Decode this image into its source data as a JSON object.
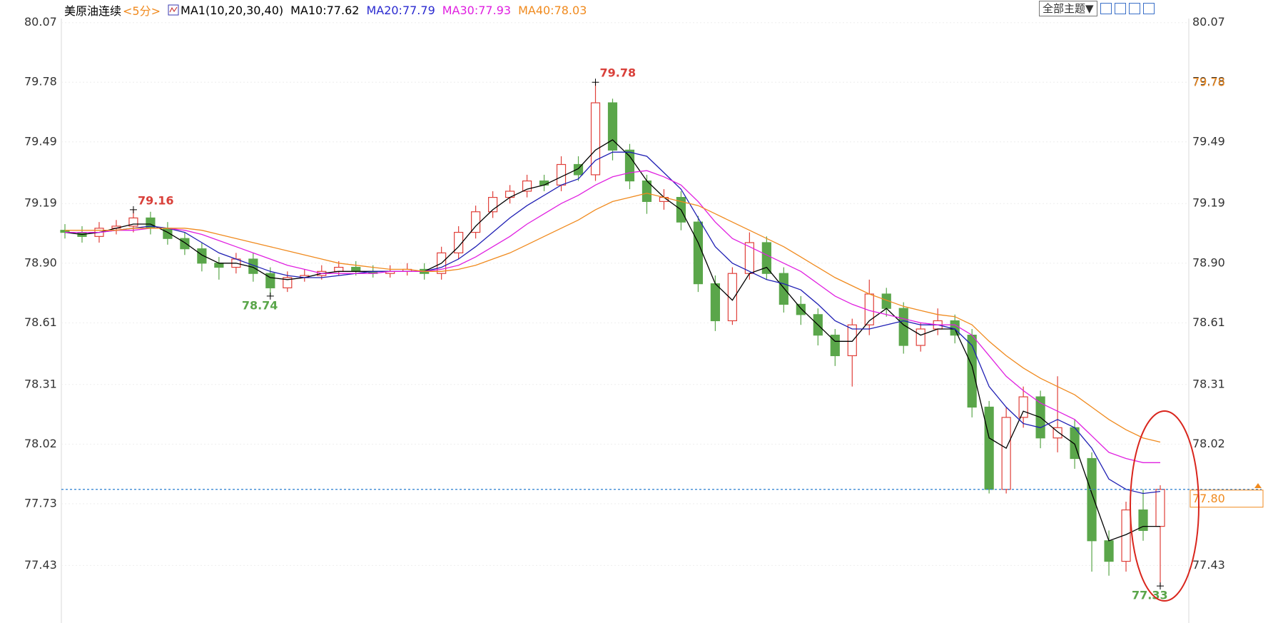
{
  "chart_data": {
    "type": "candlestick",
    "title": "美原油连续",
    "subtitle": "<5分>",
    "indicator": "MA1(10,20,30,40)",
    "toolbar_button": "全部主题▼",
    "up_color": "#e0403a",
    "down_color": "#5aa64a",
    "open": [
      79.06,
      79.05,
      79.03,
      79.07,
      79.08,
      79.12,
      79.07,
      79.02,
      78.97,
      78.9,
      78.88,
      78.92,
      78.85,
      78.78,
      78.83,
      78.84,
      78.86,
      78.88,
      78.86,
      78.85,
      78.86,
      78.87,
      78.85,
      78.95,
      79.05,
      79.15,
      79.22,
      79.25,
      79.3,
      79.28,
      79.38,
      79.33,
      79.68,
      79.45,
      79.3,
      79.2,
      79.22,
      79.1,
      78.8,
      78.62,
      78.85,
      79.0,
      78.85,
      78.7,
      78.65,
      78.55,
      78.45,
      78.6,
      78.75,
      78.68,
      78.5,
      78.58,
      78.62,
      78.55,
      78.2,
      77.8,
      78.15,
      78.25,
      78.05,
      78.1,
      77.95,
      77.55,
      77.45,
      77.7,
      77.62
    ],
    "high": [
      79.09,
      79.08,
      79.1,
      79.11,
      79.16,
      79.15,
      79.1,
      79.05,
      79.0,
      78.93,
      78.95,
      78.95,
      78.88,
      78.86,
      78.87,
      78.89,
      78.91,
      78.91,
      78.89,
      78.89,
      78.9,
      78.9,
      78.98,
      79.08,
      79.18,
      79.25,
      79.28,
      79.33,
      79.33,
      79.42,
      79.42,
      79.78,
      79.7,
      79.48,
      79.33,
      79.26,
      79.25,
      79.13,
      78.84,
      78.88,
      79.05,
      79.03,
      78.88,
      78.74,
      78.68,
      78.58,
      78.63,
      78.82,
      78.78,
      78.71,
      78.61,
      78.68,
      78.65,
      78.58,
      78.23,
      78.2,
      78.3,
      78.28,
      78.35,
      78.14,
      77.98,
      77.6,
      77.74,
      77.8,
      77.82
    ],
    "low": [
      79.02,
      79.0,
      79.0,
      79.04,
      79.05,
      79.04,
      78.99,
      78.94,
      78.86,
      78.82,
      78.85,
      78.81,
      78.74,
      78.76,
      78.81,
      78.82,
      78.84,
      78.84,
      78.83,
      78.83,
      78.84,
      78.82,
      78.82,
      78.92,
      79.02,
      79.12,
      79.19,
      79.22,
      79.25,
      79.25,
      79.3,
      79.3,
      79.4,
      79.26,
      79.14,
      79.16,
      79.06,
      78.76,
      78.57,
      78.6,
      78.82,
      78.82,
      78.66,
      78.6,
      78.5,
      78.4,
      78.3,
      78.55,
      78.64,
      78.46,
      78.47,
      78.55,
      78.51,
      78.15,
      77.78,
      77.78,
      78.1,
      78.0,
      77.98,
      77.9,
      77.4,
      77.38,
      77.4,
      77.55,
      77.33
    ],
    "close": [
      79.05,
      79.03,
      79.07,
      79.08,
      79.12,
      79.07,
      79.02,
      78.97,
      78.9,
      78.88,
      78.92,
      78.85,
      78.78,
      78.83,
      78.84,
      78.86,
      78.88,
      78.86,
      78.85,
      78.86,
      78.87,
      78.85,
      78.95,
      79.05,
      79.15,
      79.22,
      79.25,
      79.3,
      79.28,
      79.38,
      79.33,
      79.68,
      79.45,
      79.3,
      79.2,
      79.22,
      79.1,
      78.8,
      78.62,
      78.85,
      79.0,
      78.85,
      78.7,
      78.65,
      78.55,
      78.45,
      78.6,
      78.75,
      78.68,
      78.5,
      78.58,
      78.62,
      78.55,
      78.2,
      77.8,
      78.15,
      78.25,
      78.05,
      78.1,
      77.95,
      77.55,
      77.45,
      77.7,
      77.6,
      77.8
    ],
    "series": [
      {
        "name": "MA10:77.62",
        "color": "#000000",
        "values": [
          79.05,
          79.04,
          79.05,
          79.07,
          79.09,
          79.09,
          79.05,
          79.0,
          78.94,
          78.9,
          78.9,
          78.88,
          78.83,
          78.82,
          78.83,
          78.85,
          78.86,
          78.86,
          78.86,
          78.86,
          78.86,
          78.86,
          78.9,
          78.98,
          79.08,
          79.16,
          79.22,
          79.26,
          79.28,
          79.32,
          79.36,
          79.45,
          79.5,
          79.42,
          79.3,
          79.22,
          79.16,
          79.0,
          78.8,
          78.72,
          78.85,
          78.88,
          78.78,
          78.68,
          78.6,
          78.52,
          78.52,
          78.62,
          78.68,
          78.6,
          78.55,
          78.58,
          78.58,
          78.4,
          78.05,
          78.0,
          78.18,
          78.15,
          78.08,
          78.02,
          77.78,
          77.55,
          77.58,
          77.62,
          77.62
        ]
      },
      {
        "name": "MA20:77.79",
        "color": "#1f1fb4",
        "values": [
          79.05,
          79.05,
          79.05,
          79.06,
          79.07,
          79.08,
          79.07,
          79.05,
          79.0,
          78.95,
          78.92,
          78.89,
          78.86,
          78.84,
          78.83,
          78.83,
          78.84,
          78.85,
          78.86,
          78.86,
          78.86,
          78.86,
          78.88,
          78.92,
          78.98,
          79.05,
          79.12,
          79.18,
          79.23,
          79.28,
          79.31,
          79.4,
          79.44,
          79.44,
          79.42,
          79.34,
          79.26,
          79.12,
          78.98,
          78.9,
          78.86,
          78.82,
          78.8,
          78.77,
          78.7,
          78.62,
          78.58,
          78.58,
          78.6,
          78.62,
          78.6,
          78.6,
          78.58,
          78.5,
          78.3,
          78.2,
          78.12,
          78.1,
          78.14,
          78.1,
          78.0,
          77.85,
          77.8,
          77.78,
          77.79
        ]
      },
      {
        "name": "MA30:77.93",
        "color": "#e020e0",
        "values": [
          79.05,
          79.05,
          79.05,
          79.06,
          79.06,
          79.07,
          79.07,
          79.06,
          79.04,
          79.01,
          78.98,
          78.95,
          78.92,
          78.89,
          78.87,
          78.85,
          78.85,
          78.85,
          78.85,
          78.86,
          78.86,
          78.86,
          78.87,
          78.89,
          78.93,
          78.98,
          79.03,
          79.09,
          79.14,
          79.19,
          79.23,
          79.28,
          79.32,
          79.34,
          79.35,
          79.32,
          79.28,
          79.2,
          79.1,
          79.02,
          78.98,
          78.94,
          78.9,
          78.86,
          78.8,
          78.74,
          78.7,
          78.67,
          78.65,
          78.63,
          78.61,
          78.6,
          78.6,
          78.55,
          78.45,
          78.35,
          78.28,
          78.22,
          78.18,
          78.14,
          78.06,
          77.98,
          77.95,
          77.93,
          77.93
        ]
      },
      {
        "name": "MA40:78.03",
        "color": "#f08a1e",
        "values": [
          79.06,
          79.06,
          79.06,
          79.06,
          79.07,
          79.07,
          79.07,
          79.07,
          79.06,
          79.04,
          79.02,
          79.0,
          78.98,
          78.96,
          78.94,
          78.92,
          78.9,
          78.89,
          78.88,
          78.87,
          78.87,
          78.86,
          78.86,
          78.87,
          78.89,
          78.92,
          78.95,
          78.99,
          79.03,
          79.07,
          79.11,
          79.16,
          79.2,
          79.22,
          79.24,
          79.22,
          79.2,
          79.18,
          79.14,
          79.1,
          79.06,
          79.02,
          78.98,
          78.93,
          78.88,
          78.83,
          78.79,
          78.75,
          78.72,
          78.69,
          78.67,
          78.65,
          78.64,
          78.6,
          78.52,
          78.45,
          78.39,
          78.34,
          78.3,
          78.26,
          78.2,
          78.14,
          78.09,
          78.05,
          78.03
        ]
      }
    ],
    "ylim": [
      77.15,
      80.18
    ],
    "yticks": [
      80.07,
      79.78,
      79.49,
      79.19,
      {
        "value": 78.9,
        "label": "78.90"
      },
      78.61,
      78.31,
      78.02,
      77.73,
      77.43
    ],
    "grid": true,
    "high_labels": [
      79.16,
      79.78
    ],
    "low_labels": [
      78.74,
      77.33
    ],
    "axis_highlight": 79.78,
    "last_price": {
      "value": 77.8,
      "label": "77.80"
    }
  }
}
